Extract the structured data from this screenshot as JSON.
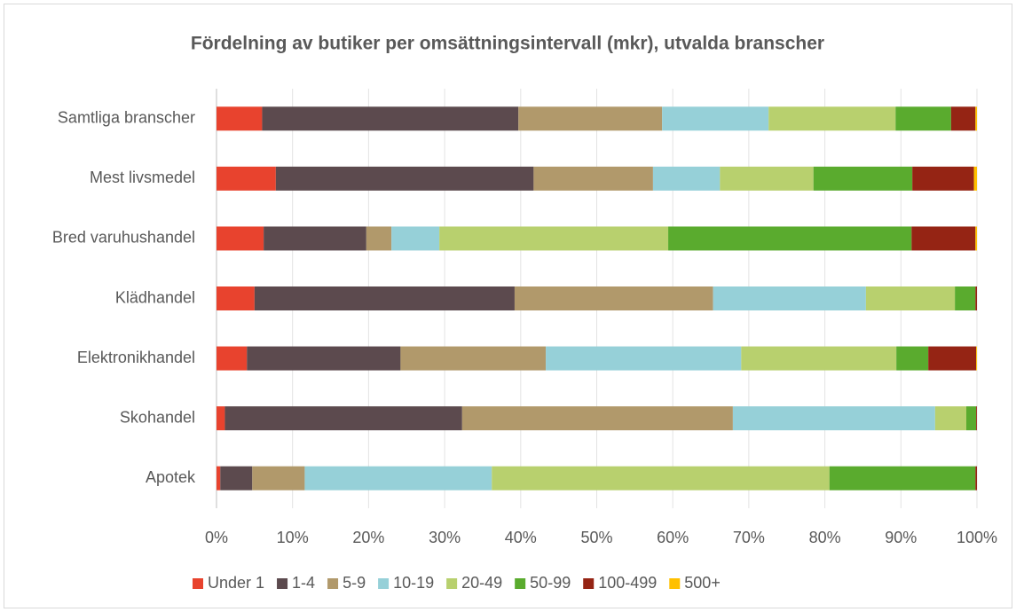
{
  "chart_data": {
    "type": "stacked_barh",
    "title": "Fördelning av butiker per omsättningsintervall (mkr), utvalda branscher",
    "categories": [
      "Samtliga branscher",
      "Mest livsmedel",
      "Bred varuhushandel",
      "Klädhandel",
      "Elektronikhandel",
      "Skohandel",
      "Apotek"
    ],
    "series": [
      {
        "name": "Under 1",
        "color": "#e8432e",
        "values": [
          6.0,
          7.8,
          6.2,
          5.0,
          4.0,
          1.1,
          0.5
        ]
      },
      {
        "name": "1-4",
        "color": "#5c4a4e",
        "values": [
          33.7,
          33.9,
          13.5,
          34.2,
          20.2,
          31.2,
          4.2
        ]
      },
      {
        "name": "5-9",
        "color": "#b1996b",
        "values": [
          18.9,
          15.7,
          3.3,
          26.1,
          19.1,
          35.6,
          6.9
        ]
      },
      {
        "name": "10-19",
        "color": "#96d0d8",
        "values": [
          14.0,
          8.8,
          6.3,
          20.1,
          25.7,
          26.6,
          24.6
        ]
      },
      {
        "name": "20-49",
        "color": "#b8d06e",
        "values": [
          16.7,
          12.3,
          30.1,
          11.7,
          20.4,
          4.1,
          44.4
        ]
      },
      {
        "name": "50-99",
        "color": "#5aab2e",
        "values": [
          7.3,
          13.0,
          32.0,
          2.7,
          4.2,
          1.3,
          19.2
        ]
      },
      {
        "name": "100-499",
        "color": "#952414",
        "values": [
          3.2,
          8.1,
          8.4,
          0.2,
          6.3,
          0.1,
          0.2
        ]
      },
      {
        "name": "500+",
        "color": "#ffc000",
        "values": [
          0.2,
          0.4,
          0.2,
          0,
          0.1,
          0,
          0
        ]
      }
    ],
    "xlim": [
      0,
      100
    ],
    "xticks": [
      {
        "value": 0,
        "label": "0%"
      },
      {
        "value": 10,
        "label": "10%"
      },
      {
        "value": 20,
        "label": "20%"
      },
      {
        "value": 30,
        "label": "30%"
      },
      {
        "value": 40,
        "label": "40%"
      },
      {
        "value": 50,
        "label": "50%"
      },
      {
        "value": 60,
        "label": "60%"
      },
      {
        "value": 70,
        "label": "70%"
      },
      {
        "value": 80,
        "label": "80%"
      },
      {
        "value": 90,
        "label": "90%"
      },
      {
        "value": 100,
        "label": "100%"
      }
    ],
    "grid": true,
    "legend": "bottom"
  }
}
